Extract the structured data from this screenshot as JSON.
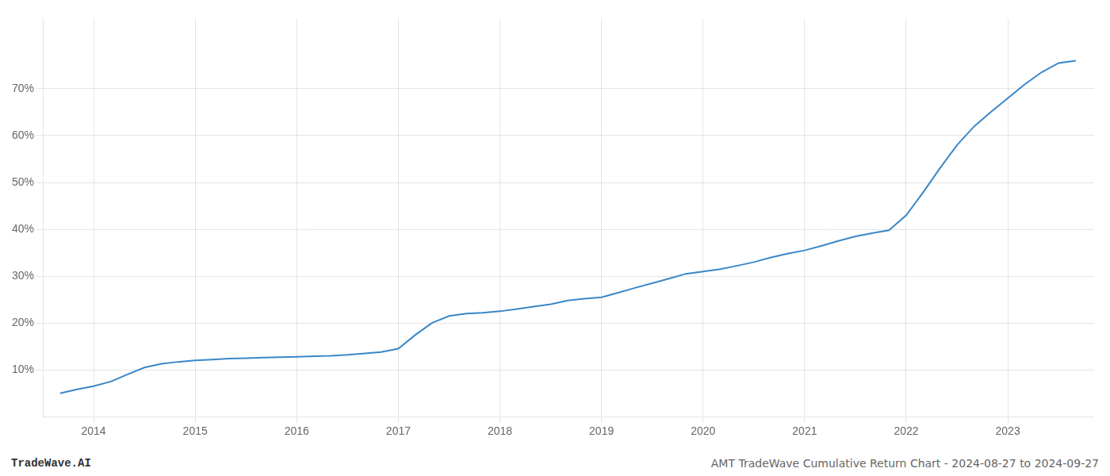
{
  "chart_data": {
    "type": "line",
    "annotations": [
      "TradeWave.AI",
      "AMT TradeWave Cumulative Return Chart - 2024-08-27 to 2024-09-27"
    ],
    "color": "#3a87c8",
    "x": [
      2013.67,
      2013.83,
      2014.0,
      2014.17,
      2014.33,
      2014.5,
      2014.67,
      2014.83,
      2015.0,
      2015.17,
      2015.33,
      2015.5,
      2015.67,
      2015.83,
      2016.0,
      2016.17,
      2016.33,
      2016.5,
      2016.67,
      2016.83,
      2017.0,
      2017.17,
      2017.33,
      2017.5,
      2017.67,
      2017.83,
      2018.0,
      2018.17,
      2018.33,
      2018.5,
      2018.67,
      2018.83,
      2019.0,
      2019.17,
      2019.33,
      2019.5,
      2019.67,
      2019.83,
      2020.0,
      2020.17,
      2020.33,
      2020.5,
      2020.67,
      2020.83,
      2021.0,
      2021.17,
      2021.33,
      2021.5,
      2021.67,
      2021.83,
      2022.0,
      2022.17,
      2022.33,
      2022.5,
      2022.67,
      2022.83,
      2023.0,
      2023.17,
      2023.33,
      2023.5,
      2023.67
    ],
    "values": [
      5.0,
      5.8,
      6.5,
      7.5,
      9.0,
      10.5,
      11.3,
      11.7,
      12.0,
      12.2,
      12.4,
      12.5,
      12.6,
      12.7,
      12.8,
      12.9,
      13.0,
      13.2,
      13.5,
      13.8,
      14.5,
      17.5,
      20.0,
      21.5,
      22.0,
      22.2,
      22.5,
      23.0,
      23.5,
      24.0,
      24.8,
      25.2,
      25.5,
      26.5,
      27.5,
      28.5,
      29.5,
      30.5,
      31.0,
      31.5,
      32.2,
      33.0,
      34.0,
      34.8,
      35.5,
      36.5,
      37.5,
      38.5,
      39.2,
      39.8,
      43.0,
      48.0,
      53.0,
      58.0,
      62.0,
      65.0,
      68.0,
      71.0,
      73.5,
      75.5,
      76.0
    ],
    "xlim": [
      2013.5,
      2023.85
    ],
    "xticks": [
      2014,
      2015,
      2016,
      2017,
      2018,
      2019,
      2020,
      2021,
      2022,
      2023
    ],
    "ylim": [
      0,
      85
    ],
    "yticks": [
      {
        "value": 10,
        "label": "10%"
      },
      {
        "value": 20,
        "label": "20%"
      },
      {
        "value": 30,
        "label": "30%"
      },
      {
        "value": 40,
        "label": "40%"
      },
      {
        "value": 50,
        "label": "50%"
      },
      {
        "value": 60,
        "label": "60%"
      },
      {
        "value": 70,
        "label": "70%"
      }
    ],
    "grid": true
  }
}
